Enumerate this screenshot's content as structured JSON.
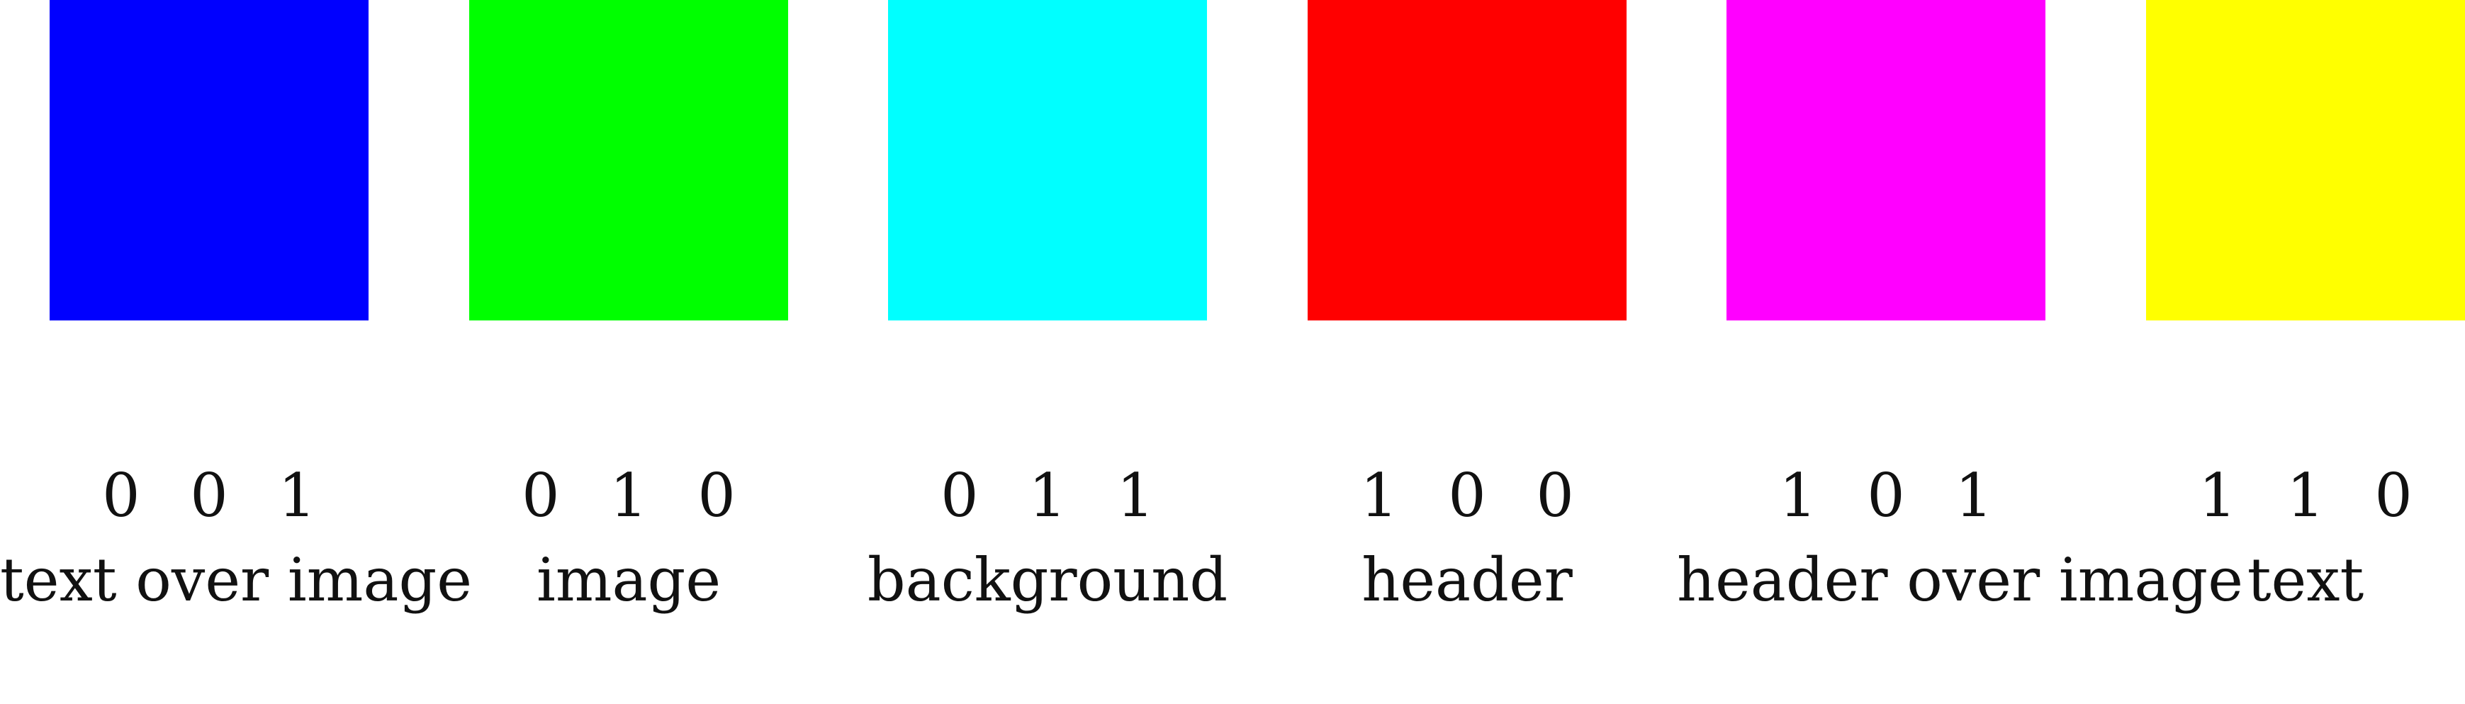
{
  "legend": {
    "items": [
      {
        "code": "0 0 1",
        "label": "text over image",
        "color": "#0000FF"
      },
      {
        "code": "0 1 0",
        "label": "image",
        "color": "#00FF00"
      },
      {
        "code": "0 1 1",
        "label": "background",
        "color": "#00FFFF"
      },
      {
        "code": "1 0 0",
        "label": "header",
        "color": "#FF0000"
      },
      {
        "code": "1 0 1",
        "label": "header over image",
        "color": "#FF00FF"
      },
      {
        "code": "1 1 0",
        "label": "text",
        "color": "#FFFF00"
      }
    ]
  }
}
